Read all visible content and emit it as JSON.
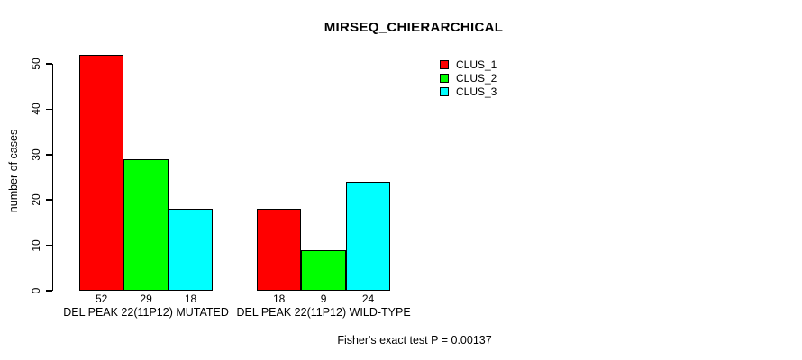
{
  "title": "MIRSEQ_CHIERARCHICAL",
  "footer": "Fisher's exact test P = 0.00137",
  "chart_data": {
    "type": "bar",
    "title": "MIRSEQ_CHIERARCHICAL",
    "categories": [
      "DEL PEAK 22(11P12) MUTATED",
      "DEL PEAK 22(11P12) WILD-TYPE"
    ],
    "series": [
      {
        "name": "CLUS_1",
        "color": "#ff0000",
        "values": [
          52,
          18
        ]
      },
      {
        "name": "CLUS_2",
        "color": "#00ff00",
        "values": [
          29,
          9
        ]
      },
      {
        "name": "CLUS_3",
        "color": "#00ffff",
        "values": [
          18,
          24
        ]
      }
    ],
    "bar_value_labels": [
      [
        52,
        29,
        18
      ],
      [
        18,
        9,
        24
      ]
    ],
    "xlabel": "",
    "ylabel": "number of cases",
    "ylim": [
      0,
      50
    ],
    "yticks": [
      0,
      10,
      20,
      30,
      40,
      50
    ],
    "grid": false,
    "legend_position": "top-right",
    "annotation": "Fisher's exact test P = 0.00137"
  }
}
